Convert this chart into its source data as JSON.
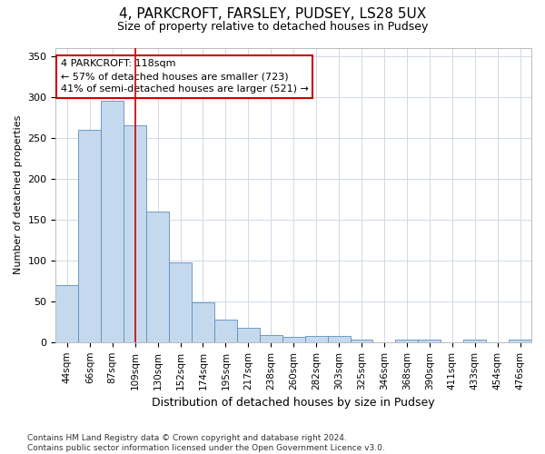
{
  "title1": "4, PARKCROFT, FARSLEY, PUDSEY, LS28 5UX",
  "title2": "Size of property relative to detached houses in Pudsey",
  "xlabel": "Distribution of detached houses by size in Pudsey",
  "ylabel": "Number of detached properties",
  "categories": [
    "44sqm",
    "66sqm",
    "87sqm",
    "109sqm",
    "130sqm",
    "152sqm",
    "174sqm",
    "195sqm",
    "217sqm",
    "238sqm",
    "260sqm",
    "282sqm",
    "303sqm",
    "325sqm",
    "346sqm",
    "368sqm",
    "390sqm",
    "411sqm",
    "433sqm",
    "454sqm",
    "476sqm"
  ],
  "values": [
    70,
    260,
    295,
    265,
    160,
    98,
    49,
    28,
    18,
    9,
    6,
    8,
    8,
    3,
    0,
    3,
    3,
    0,
    3,
    0,
    3
  ],
  "bar_color": "#c5d9ee",
  "bar_edge_color": "#5b8fbe",
  "red_line_index": 3,
  "annotation_line1": "4 PARKCROFT: 118sqm",
  "annotation_line2": "← 57% of detached houses are smaller (723)",
  "annotation_line3": "41% of semi-detached houses are larger (521) →",
  "annotation_box_color": "#ffffff",
  "annotation_border_color": "#cc0000",
  "ylim": [
    0,
    360
  ],
  "yticks": [
    0,
    50,
    100,
    150,
    200,
    250,
    300,
    350
  ],
  "footer": "Contains HM Land Registry data © Crown copyright and database right 2024.\nContains public sector information licensed under the Open Government Licence v3.0.",
  "bg_color": "#ffffff",
  "grid_color": "#d0d8e8",
  "title1_fontsize": 11,
  "title2_fontsize": 9,
  "ylabel_fontsize": 8,
  "xlabel_fontsize": 9
}
